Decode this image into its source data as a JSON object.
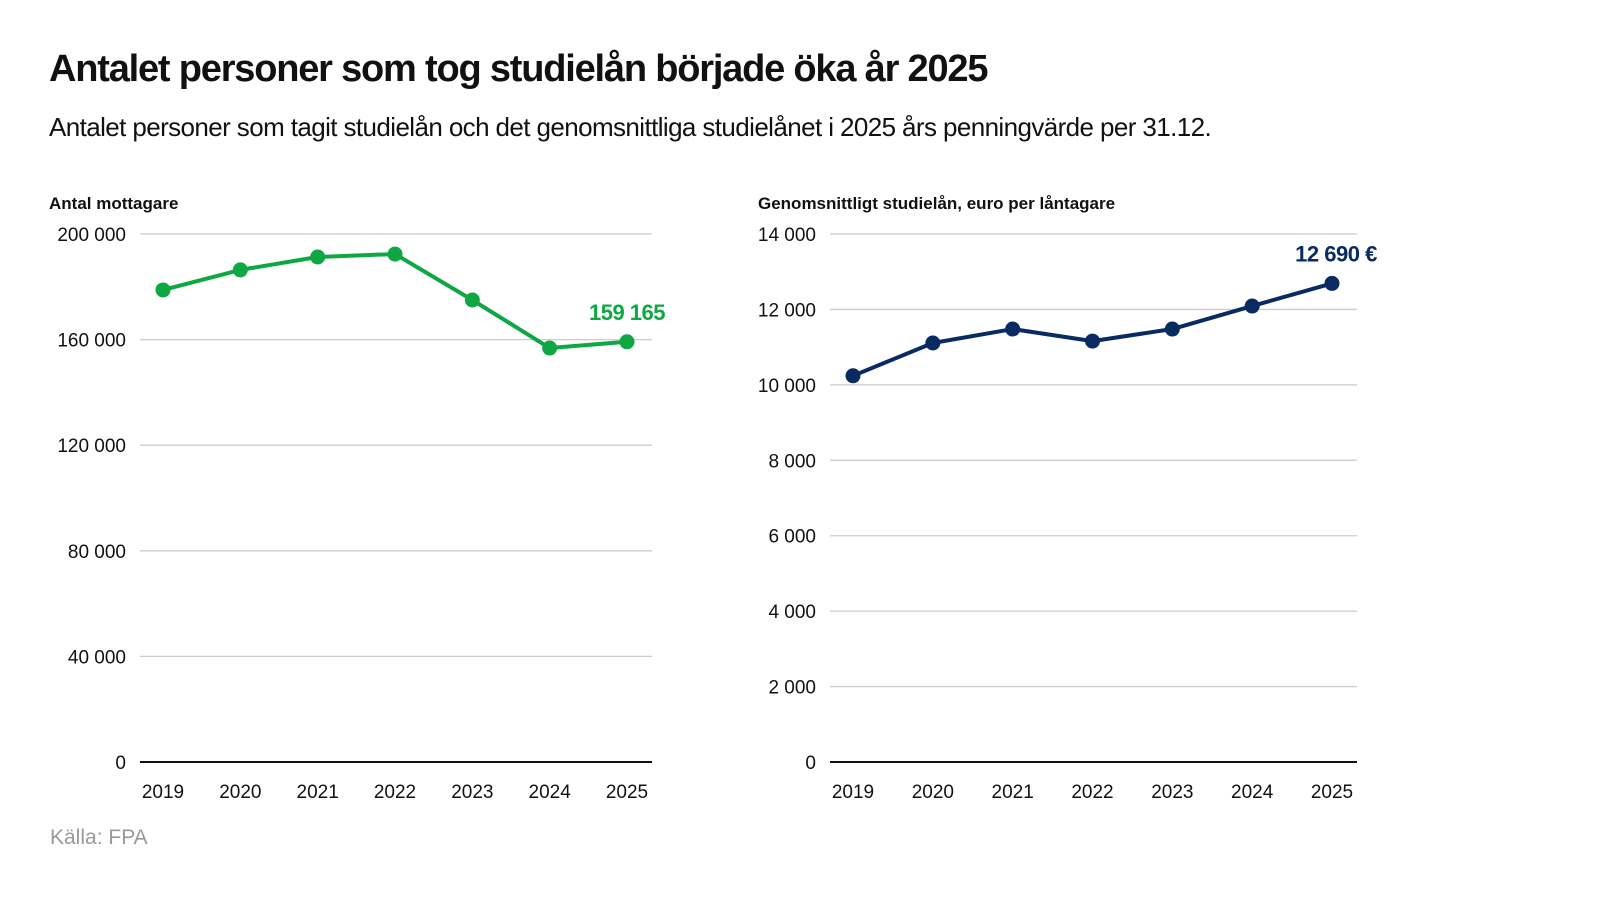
{
  "title": "Antalet personer som tog studielån började öka år 2025",
  "subtitle": "Antalet personer som tagit studielån och det genomsnittliga studielånet i 2025 års penningvärde per 31.12.",
  "source": "Källa: FPA",
  "chart_data": [
    {
      "type": "line",
      "ylabel": "Antal mottagare",
      "categories": [
        "2019",
        "2020",
        "2021",
        "2022",
        "2023",
        "2024",
        "2025"
      ],
      "values": [
        178800,
        186400,
        191300,
        192400,
        175000,
        156800,
        159165
      ],
      "ylim": [
        0,
        200000
      ],
      "yticks": [
        0,
        40000,
        80000,
        120000,
        160000,
        200000
      ],
      "ytick_labels": [
        "0",
        "40 000",
        "80 000",
        "120 000",
        "160 000",
        "200 000"
      ],
      "data_label": "159 165",
      "grid": true,
      "color": "#0ea743"
    },
    {
      "type": "line",
      "ylabel": "Genomsnittligt studielån, euro per låntagare",
      "categories": [
        "2019",
        "2020",
        "2021",
        "2022",
        "2023",
        "2024",
        "2025"
      ],
      "values": [
        10240,
        11110,
        11480,
        11160,
        11480,
        12090,
        12690
      ],
      "ylim": [
        0,
        14000
      ],
      "yticks": [
        0,
        2000,
        4000,
        6000,
        8000,
        10000,
        12000,
        14000
      ],
      "ytick_labels": [
        "0",
        "2 000",
        "4 000",
        "6 000",
        "8 000",
        "10 000",
        "12 000",
        "14 000"
      ],
      "data_label": "12 690 €",
      "grid": true,
      "color": "#0a2a62"
    }
  ]
}
